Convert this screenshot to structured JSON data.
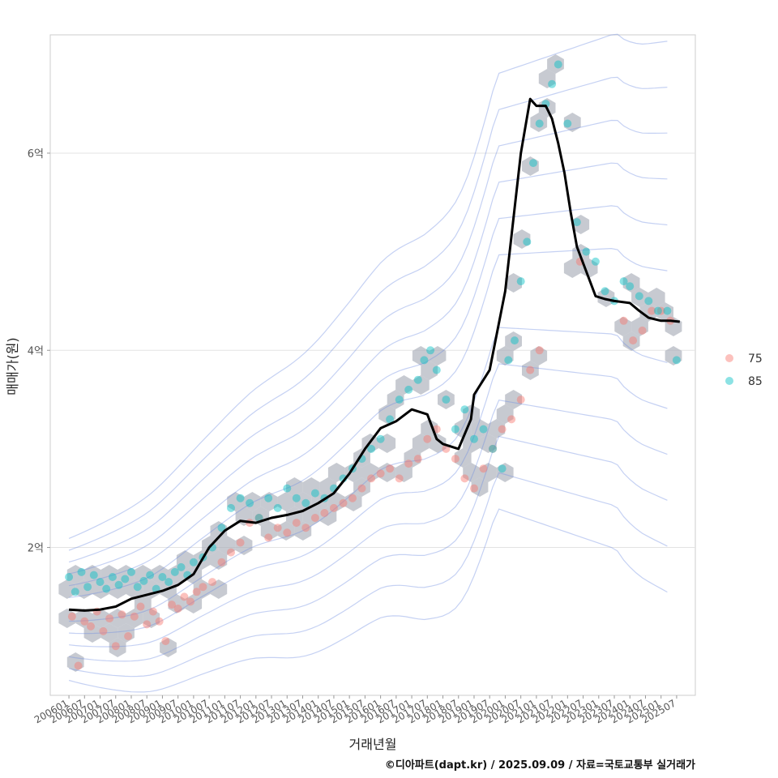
{
  "chart_data": {
    "type": "scatter",
    "xlabel": "거래년월",
    "ylabel": "매매가(원)",
    "caption": "©디아파트(dapt.kr) / 2025.09.09 / 자료=국토교통부 실거래가",
    "x_tick_labels": [
      "200601",
      "200607",
      "200701",
      "200707",
      "200801",
      "200807",
      "200901",
      "200907",
      "201001",
      "201007",
      "201101",
      "201107",
      "201201",
      "201207",
      "201301",
      "201307",
      "201401",
      "201407",
      "201501",
      "201507",
      "201601",
      "201607",
      "201701",
      "201707",
      "201801",
      "201807",
      "201901",
      "201907",
      "202001",
      "202007",
      "202101",
      "202107",
      "202201",
      "202207",
      "202301",
      "202307",
      "202401",
      "202407",
      "202501",
      "202507"
    ],
    "y_ticks": [
      2,
      4,
      6
    ],
    "y_tick_labels": [
      "2억",
      "4억",
      "6억"
    ],
    "ylim": [
      0.5,
      7.2
    ],
    "xlim": [
      2005.4,
      2026.1
    ],
    "grid": true,
    "legend": {
      "position": "right",
      "entries": [
        {
          "label": "75",
          "color": "#F8766D"
        },
        {
          "label": "85",
          "color": "#00BFC4"
        }
      ]
    },
    "trend_line": {
      "color": "#000000",
      "x": [
        2006.0,
        2006.5,
        2007.0,
        2007.5,
        2008.0,
        2008.5,
        2009.0,
        2009.5,
        2010.0,
        2010.5,
        2011.0,
        2011.5,
        2012.0,
        2012.5,
        2013.0,
        2013.5,
        2014.0,
        2014.5,
        2015.0,
        2015.5,
        2016.0,
        2016.5,
        2017.0,
        2017.5,
        2017.8,
        2018.0,
        2018.5,
        2018.9,
        2019.0,
        2019.5,
        2020.0,
        2020.5,
        2020.8,
        2021.0,
        2021.3,
        2021.5,
        2021.7,
        2021.9,
        2022.1,
        2022.3,
        2022.6,
        2022.9,
        2023.2,
        2023.5,
        2024.0,
        2024.3,
        2024.6,
        2025.0,
        2025.3,
        2025.6
      ],
      "y": [
        1.37,
        1.36,
        1.37,
        1.4,
        1.48,
        1.52,
        1.56,
        1.62,
        1.73,
        2.0,
        2.17,
        2.27,
        2.25,
        2.3,
        2.33,
        2.37,
        2.45,
        2.55,
        2.75,
        3.0,
        3.21,
        3.28,
        3.4,
        3.35,
        3.1,
        3.05,
        3.0,
        3.3,
        3.55,
        3.8,
        4.6,
        6.0,
        6.55,
        6.48,
        6.48,
        6.35,
        6.1,
        5.8,
        5.4,
        5.05,
        4.8,
        4.55,
        4.52,
        4.5,
        4.48,
        4.4,
        4.33,
        4.3,
        4.3,
        4.29
      ]
    },
    "series": [
      {
        "name": "75",
        "color": "#F8766D",
        "x": [
          2006.1,
          2006.3,
          2006.5,
          2006.7,
          2006.9,
          2007.1,
          2007.3,
          2007.5,
          2007.7,
          2007.9,
          2008.1,
          2008.3,
          2008.5,
          2008.7,
          2008.9,
          2009.1,
          2009.3,
          2009.5,
          2009.7,
          2009.9,
          2010.1,
          2010.3,
          2010.6,
          2010.9,
          2011.2,
          2011.5,
          2011.8,
          2012.1,
          2012.4,
          2012.7,
          2013.0,
          2013.3,
          2013.6,
          2013.9,
          2014.2,
          2014.5,
          2014.8,
          2015.1,
          2015.4,
          2015.7,
          2016.0,
          2016.3,
          2016.6,
          2016.9,
          2017.2,
          2017.5,
          2017.8,
          2018.1,
          2018.4,
          2018.7,
          2019.0,
          2019.3,
          2019.6,
          2019.9,
          2020.2,
          2020.5,
          2020.8,
          2021.1,
          2022.4,
          2023.8,
          2024.1,
          2024.4,
          2024.7,
          2025.0,
          2025.3
        ],
        "y": [
          1.3,
          0.8,
          1.25,
          1.2,
          1.35,
          1.15,
          1.28,
          1.0,
          1.32,
          1.1,
          1.3,
          1.4,
          1.22,
          1.35,
          1.25,
          1.05,
          1.42,
          1.38,
          1.5,
          1.45,
          1.55,
          1.6,
          1.65,
          1.85,
          1.95,
          2.05,
          2.25,
          2.3,
          2.1,
          2.2,
          2.15,
          2.25,
          2.2,
          2.3,
          2.35,
          2.4,
          2.45,
          2.5,
          2.6,
          2.7,
          2.75,
          2.8,
          2.7,
          2.85,
          2.9,
          3.1,
          3.2,
          3.0,
          2.9,
          2.7,
          2.6,
          2.8,
          3.0,
          3.2,
          3.3,
          3.5,
          3.8,
          4.0,
          4.9,
          4.3,
          4.1,
          4.2,
          4.4,
          4.4,
          4.3
        ]
      },
      {
        "name": "85",
        "color": "#00BFC4",
        "x": [
          2006.0,
          2006.2,
          2006.4,
          2006.6,
          2006.8,
          2007.0,
          2007.2,
          2007.4,
          2007.6,
          2007.8,
          2008.0,
          2008.2,
          2008.4,
          2008.6,
          2008.8,
          2009.0,
          2009.2,
          2009.4,
          2009.6,
          2009.8,
          2010.0,
          2010.3,
          2010.6,
          2010.9,
          2011.2,
          2011.5,
          2011.8,
          2012.1,
          2012.4,
          2012.7,
          2013.0,
          2013.3,
          2013.6,
          2013.9,
          2014.2,
          2014.5,
          2014.8,
          2015.1,
          2015.4,
          2015.7,
          2016.0,
          2016.3,
          2016.6,
          2016.9,
          2017.2,
          2017.4,
          2017.6,
          2017.8,
          2018.1,
          2018.4,
          2018.7,
          2019.0,
          2019.3,
          2019.6,
          2019.9,
          2020.1,
          2020.3,
          2020.5,
          2020.7,
          2020.9,
          2021.1,
          2021.3,
          2021.5,
          2021.7,
          2022.0,
          2022.3,
          2022.6,
          2022.9,
          2023.2,
          2023.5,
          2023.8,
          2024.0,
          2024.3,
          2024.6,
          2024.9,
          2025.2,
          2025.5
        ],
        "y": [
          1.7,
          1.55,
          1.75,
          1.6,
          1.72,
          1.65,
          1.58,
          1.7,
          1.62,
          1.68,
          1.75,
          1.6,
          1.66,
          1.72,
          1.58,
          1.7,
          1.65,
          1.75,
          1.8,
          1.72,
          1.85,
          1.9,
          2.0,
          2.2,
          2.4,
          2.5,
          2.45,
          2.3,
          2.5,
          2.4,
          2.6,
          2.5,
          2.45,
          2.55,
          2.5,
          2.6,
          2.7,
          2.8,
          2.9,
          3.0,
          3.1,
          3.3,
          3.5,
          3.6,
          3.7,
          3.9,
          4.0,
          3.8,
          3.5,
          3.2,
          3.4,
          3.1,
          3.2,
          3.0,
          2.8,
          3.9,
          4.1,
          4.7,
          5.1,
          5.9,
          6.3,
          6.5,
          6.7,
          6.9,
          6.3,
          5.3,
          5.0,
          4.9,
          4.6,
          4.5,
          4.7,
          4.65,
          4.55,
          4.5,
          4.4,
          4.4,
          3.9
        ]
      }
    ]
  }
}
